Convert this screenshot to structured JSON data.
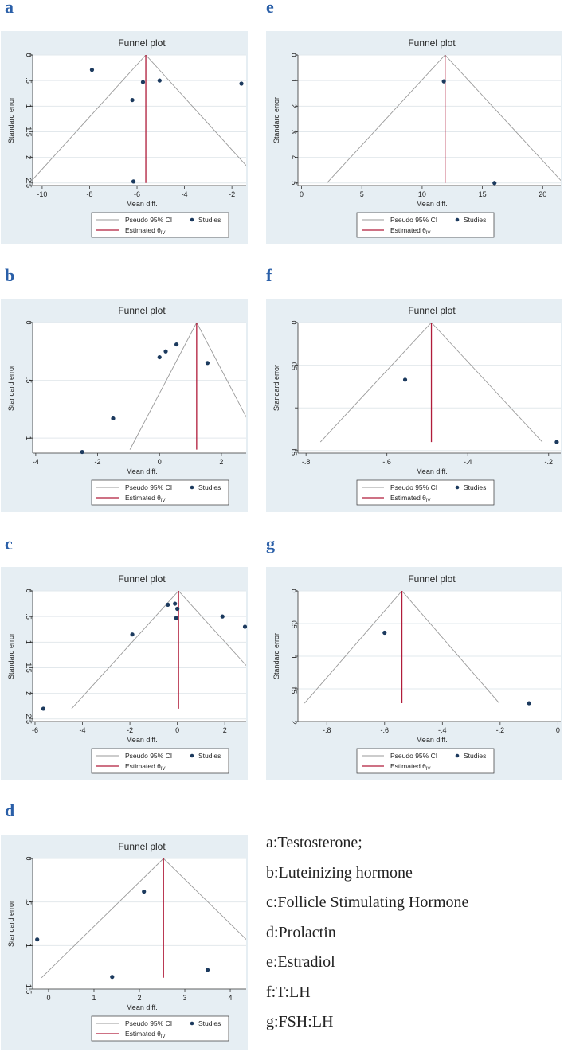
{
  "panels": [
    {
      "letter": "a"
    },
    {
      "letter": "b"
    },
    {
      "letter": "c"
    },
    {
      "letter": "d"
    },
    {
      "letter": "e"
    },
    {
      "letter": "f"
    },
    {
      "letter": "g"
    }
  ],
  "caption_lines": [
    "a:Testosterone;",
    "b:Luteinizing hormone",
    "c:Follicle Stimulating Hormone",
    "d:Prolactin",
    "e:Estradiol",
    "f:T:LH",
    "g:FSH:LH"
  ],
  "chart_data": [
    {
      "id": "a",
      "type": "scatter",
      "title": "Funnel plot",
      "xlabel": "Mean diff.",
      "ylabel": "Standard error",
      "xlim": [
        -10.4,
        -1.4
      ],
      "ylim": [
        0,
        2.55
      ],
      "y_reversed": true,
      "xticks": [
        -10,
        -8,
        -6,
        -4,
        -2
      ],
      "xtick_labels": [
        "-10",
        "-8",
        "-6",
        "-4",
        "-2"
      ],
      "yticks": [
        0,
        0.5,
        1,
        1.5,
        2,
        2.5
      ],
      "ytick_labels": [
        "0",
        ".5",
        "1",
        "1.5",
        "2",
        "2.5"
      ],
      "estimate": -5.63,
      "funnel_se_max": 2.5,
      "studies": [
        {
          "x": -7.9,
          "y": 0.29
        },
        {
          "x": -5.75,
          "y": 0.53
        },
        {
          "x": -5.05,
          "y": 0.5
        },
        {
          "x": -6.2,
          "y": 0.88
        },
        {
          "x": -1.6,
          "y": 0.56
        },
        {
          "x": -6.15,
          "y": 2.47
        }
      ],
      "legend": [
        "Pseudo 95% CI",
        "Studies",
        "Estimated θ",
        "IV"
      ]
    },
    {
      "id": "b",
      "type": "scatter",
      "title": "Funnel plot",
      "xlabel": "Mean diff.",
      "ylabel": "Standard error",
      "xlim": [
        -4.1,
        2.8
      ],
      "ylim": [
        0,
        1.13
      ],
      "y_reversed": true,
      "xticks": [
        -4,
        -2,
        0,
        2
      ],
      "xtick_labels": [
        "-4",
        "-2",
        "0",
        "2"
      ],
      "yticks": [
        0,
        0.5,
        1
      ],
      "ytick_labels": [
        "0",
        ".5",
        "1"
      ],
      "estimate": 1.2,
      "funnel_se_max": 1.1,
      "studies": [
        {
          "x": -2.5,
          "y": 1.12
        },
        {
          "x": -1.5,
          "y": 0.83
        },
        {
          "x": 0.0,
          "y": 0.3
        },
        {
          "x": 0.2,
          "y": 0.25
        },
        {
          "x": 0.55,
          "y": 0.19
        },
        {
          "x": 1.55,
          "y": 0.35
        }
      ],
      "legend": [
        "Pseudo 95% CI",
        "Studies",
        "Estimated θ",
        "IV"
      ]
    },
    {
      "id": "c",
      "type": "scatter",
      "title": "Funnel plot",
      "xlabel": "Mean diff.",
      "ylabel": "Standard error",
      "xlim": [
        -6.1,
        2.9
      ],
      "ylim": [
        0,
        2.55
      ],
      "y_reversed": true,
      "xticks": [
        -6,
        -4,
        -2,
        0,
        2
      ],
      "xtick_labels": [
        "-6",
        "-4",
        "-2",
        "0",
        "2"
      ],
      "yticks": [
        0,
        0.5,
        1,
        1.5,
        2,
        2.5
      ],
      "ytick_labels": [
        "0",
        ".5",
        "1",
        "1.5",
        "2",
        "2.5"
      ],
      "estimate": 0.05,
      "funnel_se_max": 2.3,
      "studies": [
        {
          "x": -0.4,
          "y": 0.27
        },
        {
          "x": -0.1,
          "y": 0.25
        },
        {
          "x": 0.0,
          "y": 0.35
        },
        {
          "x": -0.05,
          "y": 0.53
        },
        {
          "x": -1.9,
          "y": 0.85
        },
        {
          "x": 1.9,
          "y": 0.5
        },
        {
          "x": 2.85,
          "y": 0.7
        },
        {
          "x": -5.65,
          "y": 2.3
        }
      ],
      "legend": [
        "Pseudo 95% CI",
        "Studies",
        "Estimated θ",
        "IV"
      ]
    },
    {
      "id": "d",
      "type": "scatter",
      "title": "Funnel plot",
      "xlabel": "Mean diff.",
      "ylabel": "Standard error",
      "xlim": [
        -0.35,
        4.35
      ],
      "ylim": [
        0,
        1.5
      ],
      "y_reversed": true,
      "xticks": [
        0,
        1,
        2,
        3,
        4
      ],
      "xtick_labels": [
        "0",
        "1",
        "2",
        "3",
        "4"
      ],
      "yticks": [
        0,
        0.5,
        1,
        1.5
      ],
      "ytick_labels": [
        "0",
        ".5",
        "1",
        "1.5"
      ],
      "estimate": 2.53,
      "funnel_se_max": 1.37,
      "studies": [
        {
          "x": 2.1,
          "y": 0.38
        },
        {
          "x": -0.25,
          "y": 0.93
        },
        {
          "x": 1.4,
          "y": 1.36
        },
        {
          "x": 3.5,
          "y": 1.28
        }
      ],
      "legend": [
        "Pseudo 95% CI",
        "Studies",
        "Estimated θ",
        "IV"
      ]
    },
    {
      "id": "e",
      "type": "scatter",
      "title": "Funnel plot",
      "xlabel": "Mean diff.",
      "ylabel": "Standard error",
      "xlim": [
        -0.3,
        21.5
      ],
      "ylim": [
        0,
        5.1
      ],
      "y_reversed": true,
      "xticks": [
        0,
        5,
        10,
        15,
        20
      ],
      "xtick_labels": [
        "0",
        "5",
        "10",
        "15",
        "20"
      ],
      "yticks": [
        0,
        1,
        2,
        3,
        4,
        5
      ],
      "ytick_labels": [
        "0",
        "1",
        "2",
        "3",
        "4",
        "5"
      ],
      "estimate": 11.9,
      "funnel_se_max": 5,
      "studies": [
        {
          "x": 11.8,
          "y": 1.03
        },
        {
          "x": 16.0,
          "y": 5.0
        }
      ],
      "legend": [
        "Pseudo 95% CI",
        "Studies",
        "Estimated θ",
        "IV"
      ]
    },
    {
      "id": "f",
      "type": "scatter",
      "title": "Funnel plot",
      "xlabel": "Mean diff.",
      "ylabel": "Standard error",
      "xlim": [
        -0.82,
        -0.17
      ],
      "ylim": [
        0,
        0.153
      ],
      "y_reversed": true,
      "xticks": [
        -0.8,
        -0.6,
        -0.4,
        -0.2
      ],
      "xtick_labels": [
        "-.8",
        "-.6",
        "-.4",
        "-.2"
      ],
      "yticks": [
        0,
        0.05,
        0.1,
        0.15
      ],
      "ytick_labels": [
        "0",
        ".05",
        ".1",
        ".15"
      ],
      "estimate": -0.49,
      "funnel_se_max": 0.14,
      "studies": [
        {
          "x": -0.555,
          "y": 0.067
        },
        {
          "x": -0.18,
          "y": 0.14
        }
      ],
      "legend": [
        "Pseudo 95% CI",
        "Studies",
        "Estimated θ",
        "IV"
      ]
    },
    {
      "id": "g",
      "type": "scatter",
      "title": "Funnel plot",
      "xlabel": "Mean diff.",
      "ylabel": "Standard error",
      "xlim": [
        -0.9,
        0.01
      ],
      "ylim": [
        0,
        0.2
      ],
      "y_reversed": true,
      "xticks": [
        -0.8,
        -0.6,
        -0.4,
        -0.2,
        0
      ],
      "xtick_labels": [
        "-.8",
        "-.6",
        "-.4",
        "-.2",
        "0"
      ],
      "yticks": [
        0,
        0.05,
        0.1,
        0.15,
        0.2
      ],
      "ytick_labels": [
        "0",
        ".05",
        ".1",
        ".15",
        ".2"
      ],
      "estimate": -0.54,
      "funnel_se_max": 0.172,
      "studies": [
        {
          "x": -0.6,
          "y": 0.064
        },
        {
          "x": -0.1,
          "y": 0.172
        }
      ],
      "legend": [
        "Pseudo 95% CI",
        "Studies",
        "Estimated θ",
        "IV"
      ]
    }
  ]
}
